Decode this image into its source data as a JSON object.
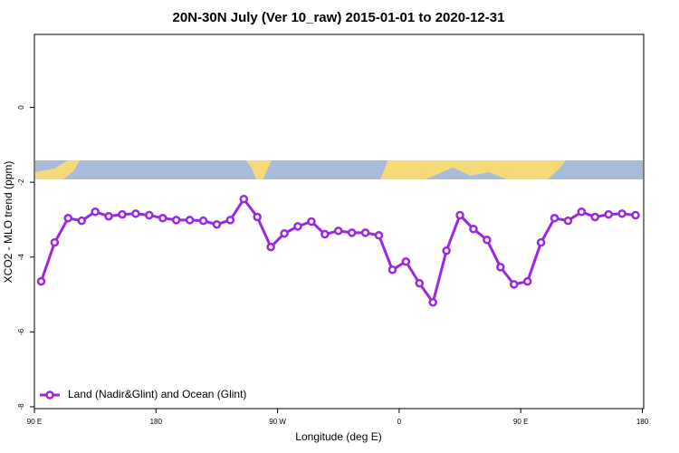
{
  "chart_data": {
    "type": "line",
    "title": "20N-30N July (Ver 10_raw)   2015-01-01 to 2020-12-31",
    "x_label": "Longitude (deg E)",
    "y_label": "XCO2 - MLO trend (ppm)",
    "x": [
      95,
      105,
      115,
      125,
      135,
      145,
      155,
      165,
      175,
      185,
      195,
      205,
      215,
      225,
      235,
      245,
      255,
      265,
      275,
      285,
      295,
      305,
      315,
      325,
      335,
      345,
      355,
      365,
      375,
      385,
      395,
      405,
      415,
      425,
      435,
      445,
      455,
      465,
      475,
      485,
      495,
      505,
      515,
      525,
      535
    ],
    "series": [
      {
        "name": "Land (Nadir&Glint) and Ocean (Glint)",
        "color": "#9b27e0",
        "values": [
          -4.65,
          -3.61,
          -2.96,
          -3.03,
          -2.79,
          -2.91,
          -2.86,
          -2.84,
          -2.88,
          -2.96,
          -3.01,
          -3.01,
          -3.03,
          -3.13,
          -3.01,
          -2.45,
          -2.93,
          -3.73,
          -3.37,
          -3.18,
          -3.05,
          -3.39,
          -3.3,
          -3.35,
          -3.35,
          -3.42,
          -4.34,
          -4.12,
          -4.7,
          -5.21,
          -3.83,
          -2.88,
          -3.25,
          -3.54,
          -4.27,
          -4.73,
          -4.65,
          -3.61,
          -2.96,
          -3.03,
          -2.79,
          -2.93,
          -2.86,
          -2.84,
          -2.88
        ]
      }
    ],
    "xlim": [
      90,
      541
    ],
    "xticks": [
      {
        "value": 90,
        "label": "90 E"
      },
      {
        "value": 180,
        "label": "180"
      },
      {
        "value": 270,
        "label": "90 W"
      },
      {
        "value": 360,
        "label": "0"
      },
      {
        "value": 450,
        "label": "90 E"
      },
      {
        "value": 540,
        "label": "180"
      }
    ],
    "ylim": [
      -8.05,
      1.95
    ],
    "yticks": [
      -8,
      -6,
      -4,
      -2,
      0
    ],
    "legend": "bottom-left"
  }
}
